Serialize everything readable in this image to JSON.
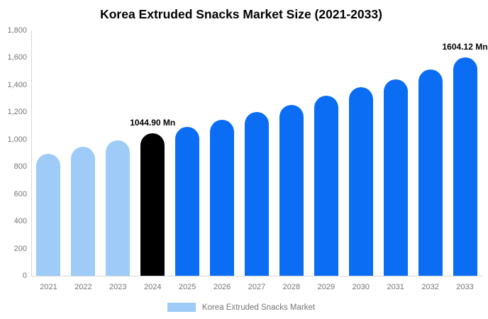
{
  "title": "Korea Extruded Snacks Market Size (2021-2033)",
  "colors": {
    "historical": "#9ECBF7",
    "base_year": "#000000",
    "forecast": "#0B6CF4",
    "axis_line": "#D6D6D6",
    "tick_text": "#757575"
  },
  "legend": {
    "label": "Korea Extruded Snacks Market",
    "swatch_color": "#9ECBF7"
  },
  "chart_data": {
    "type": "bar",
    "title": "Korea Extruded Snacks Market Size (2021-2033)",
    "unit": "Mn",
    "categories": [
      "2021",
      "2022",
      "2023",
      "2024",
      "2025",
      "2026",
      "2027",
      "2028",
      "2029",
      "2030",
      "2031",
      "2032",
      "2033"
    ],
    "values": [
      895,
      948,
      995,
      1044.9,
      1090,
      1146,
      1203,
      1254,
      1322,
      1384,
      1442,
      1515,
      1604.12
    ],
    "bar_roles": [
      "historical",
      "historical",
      "historical",
      "base_year",
      "forecast",
      "forecast",
      "forecast",
      "forecast",
      "forecast",
      "forecast",
      "forecast",
      "forecast",
      "forecast"
    ],
    "annotations": [
      {
        "index": 3,
        "text": "1044.90 Mn"
      },
      {
        "index": 12,
        "text": "1604.12 Mn"
      }
    ],
    "ylim": [
      0,
      1800
    ],
    "y_ticks": [
      0,
      200,
      400,
      600,
      800,
      1000,
      1200,
      1400,
      1600,
      1800
    ],
    "y_tick_labels": [
      "0",
      "200",
      "400",
      "600",
      "800",
      "1,000",
      "1,200",
      "1,400",
      "1,600",
      "1,800"
    ],
    "grid": false,
    "legend_position": "bottom"
  }
}
